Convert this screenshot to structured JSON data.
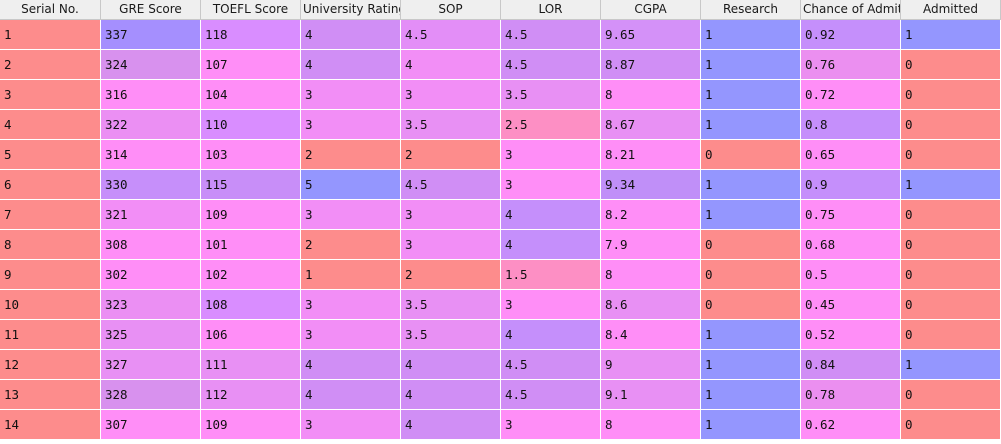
{
  "table": {
    "columns": [
      "Serial No.",
      "GRE Score",
      "TOEFL Score",
      "University Rating",
      "SOP",
      "LOR",
      "CGPA",
      "Research",
      "Chance of Admit",
      "Admitted"
    ],
    "rows": [
      [
        "1",
        "337",
        "118",
        "4",
        "4.5",
        "4.5",
        "9.65",
        "1",
        "0.92",
        "1"
      ],
      [
        "2",
        "324",
        "107",
        "4",
        "4",
        "4.5",
        "8.87",
        "1",
        "0.76",
        "0"
      ],
      [
        "3",
        "316",
        "104",
        "3",
        "3",
        "3.5",
        "8",
        "1",
        "0.72",
        "0"
      ],
      [
        "4",
        "322",
        "110",
        "3",
        "3.5",
        "2.5",
        "8.67",
        "1",
        "0.8",
        "0"
      ],
      [
        "5",
        "314",
        "103",
        "2",
        "2",
        "3",
        "8.21",
        "0",
        "0.65",
        "0"
      ],
      [
        "6",
        "330",
        "115",
        "5",
        "4.5",
        "3",
        "9.34",
        "1",
        "0.9",
        "1"
      ],
      [
        "7",
        "321",
        "109",
        "3",
        "3",
        "4",
        "8.2",
        "1",
        "0.75",
        "0"
      ],
      [
        "8",
        "308",
        "101",
        "2",
        "3",
        "4",
        "7.9",
        "0",
        "0.68",
        "0"
      ],
      [
        "9",
        "302",
        "102",
        "1",
        "2",
        "1.5",
        "8",
        "0",
        "0.5",
        "0"
      ],
      [
        "10",
        "323",
        "108",
        "3",
        "3.5",
        "3",
        "8.6",
        "0",
        "0.45",
        "0"
      ],
      [
        "11",
        "325",
        "106",
        "3",
        "3.5",
        "4",
        "8.4",
        "1",
        "0.52",
        "0"
      ],
      [
        "12",
        "327",
        "111",
        "4",
        "4",
        "4.5",
        "9",
        "1",
        "0.84",
        "1"
      ],
      [
        "13",
        "328",
        "112",
        "4",
        "4",
        "4.5",
        "9.1",
        "1",
        "0.78",
        "0"
      ],
      [
        "14",
        "307",
        "109",
        "3",
        "4",
        "3",
        "8",
        "1",
        "0.62",
        "0"
      ]
    ],
    "row_colors": [
      [
        "#fd8c8c",
        "#a58ffe",
        "#d98dff",
        "#d08ef5",
        "#e38ef7",
        "#d08ef5",
        "#d491f8",
        "#9496fe",
        "#c58ffb",
        "#9496fe"
      ],
      [
        "#fd8c8c",
        "#d891ee",
        "#ff8ef7",
        "#d08ef5",
        "#f28ef6",
        "#d08ef5",
        "#d08ef5",
        "#9496fe",
        "#eb8ff0",
        "#fd8c8c"
      ],
      [
        "#fd8c8c",
        "#ff8ef7",
        "#ff8ef7",
        "#f28ef6",
        "#f28ef6",
        "#e890f4",
        "#ff8ef7",
        "#9496fe",
        "#ff8ef7",
        "#fd8c8c"
      ],
      [
        "#fd8c8c",
        "#eb8ff3",
        "#d98dff",
        "#f28ef6",
        "#e890f4",
        "#fd8fc4",
        "#e890f4",
        "#9496fe",
        "#c58ffb",
        "#fd8c8c"
      ],
      [
        "#fd8c8c",
        "#ff8ef7",
        "#ff8ef7",
        "#fd8c8c",
        "#fd8c8c",
        "#ff8ef7",
        "#ff8ef7",
        "#fd8c8c",
        "#ff8ef7",
        "#fd8c8c"
      ],
      [
        "#fd8c8c",
        "#c68ffa",
        "#c88ef8",
        "#9496fe",
        "#d08ef5",
        "#ff8ef7",
        "#c08ff8",
        "#9496fe",
        "#c58ffb",
        "#9496fe"
      ],
      [
        "#fd8c8c",
        "#f28ef6",
        "#ff8ef7",
        "#f28ef6",
        "#f28ef6",
        "#c58ffb",
        "#ff8ef7",
        "#9496fe",
        "#ff8ef7",
        "#fd8c8c"
      ],
      [
        "#fd8c8c",
        "#ff8ef7",
        "#ff8ef7",
        "#fd8c8c",
        "#f28ef6",
        "#c58ffb",
        "#ff8ef7",
        "#fd8c8c",
        "#ff8ef7",
        "#fd8c8c"
      ],
      [
        "#fd8c8c",
        "#ff8ef7",
        "#ff8ef7",
        "#fd8c8c",
        "#fd8c8c",
        "#fd8fc4",
        "#ff8ef7",
        "#fd8c8c",
        "#ff8ef7",
        "#fd8c8c"
      ],
      [
        "#fd8c8c",
        "#eb8ff3",
        "#d98dff",
        "#f28ef6",
        "#e890f4",
        "#ff8ef7",
        "#e890f4",
        "#fd8c8c",
        "#ff8ef7",
        "#fd8c8c"
      ],
      [
        "#fd8c8c",
        "#e890f4",
        "#ff8ef7",
        "#f28ef6",
        "#e890f4",
        "#c58ffb",
        "#ff8ef7",
        "#9496fe",
        "#ff8ef7",
        "#fd8c8c"
      ],
      [
        "#fd8c8c",
        "#e890f4",
        "#e890f4",
        "#d08ef5",
        "#d08ef5",
        "#d08ef5",
        "#e890f4",
        "#9496fe",
        "#d08ef5",
        "#9496fe"
      ],
      [
        "#fd8c8c",
        "#d891ee",
        "#e890f4",
        "#d08ef5",
        "#d08ef5",
        "#d08ef5",
        "#e890f4",
        "#9496fe",
        "#eb8ff0",
        "#fd8c8c"
      ],
      [
        "#fd8c8c",
        "#ff8ef7",
        "#ff8ef7",
        "#f28ef6",
        "#d08ef5",
        "#ff8ef7",
        "#ff8ef7",
        "#9496fe",
        "#ff8ef7",
        "#fd8c8c"
      ]
    ]
  }
}
